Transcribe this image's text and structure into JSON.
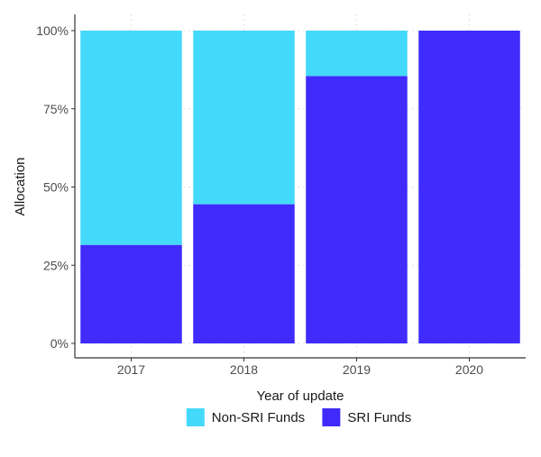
{
  "chart_data": {
    "type": "bar",
    "stacked": true,
    "categories": [
      "2017",
      "2018",
      "2019",
      "2020"
    ],
    "series": [
      {
        "name": "SRI Funds",
        "values": [
          31.5,
          44.5,
          85.5,
          100
        ],
        "color": "#3f2bfc"
      },
      {
        "name": "Non-SRI Funds",
        "values": [
          68.5,
          55.5,
          14.5,
          0
        ],
        "color": "#43d9fb"
      }
    ],
    "xlabel": "Year of update",
    "ylabel": "Allocation",
    "ylim": [
      0,
      100
    ],
    "yticks": [
      0,
      25,
      50,
      75,
      100
    ],
    "ytick_labels": [
      "0%",
      "25%",
      "50%",
      "75%",
      "100%"
    ],
    "grid": true,
    "legend_position": "bottom",
    "legend_order": [
      "Non-SRI Funds",
      "SRI Funds"
    ]
  }
}
